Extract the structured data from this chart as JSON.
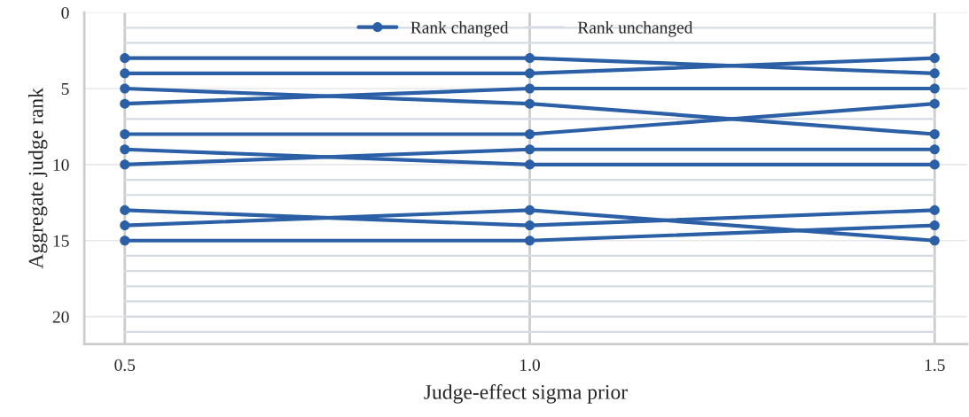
{
  "chart_data": {
    "type": "line",
    "xlabel": "Judge-effect sigma prior",
    "ylabel": "Aggregate judge rank",
    "x": [
      0.5,
      1.0,
      1.5
    ],
    "xlim": [
      0.45,
      1.54
    ],
    "xticks": [
      0.5,
      {
        "value": 1.0,
        "label": "1.0"
      },
      1.5
    ],
    "ylim": [
      21.8,
      0
    ],
    "yticks": [
      0,
      5,
      10,
      15,
      20
    ],
    "grid": true,
    "legend": "top",
    "line_style": "solid",
    "series": [
      {
        "name": "Rank unchanged",
        "color": "#d5dbe3",
        "marker": "none",
        "values": [
          1,
          1,
          1
        ]
      },
      {
        "color": "#d5dbe3",
        "marker": "none",
        "values": [
          2,
          2,
          2
        ]
      },
      {
        "color": "#d5dbe3",
        "marker": "none",
        "values": [
          7,
          7,
          7
        ]
      },
      {
        "color": "#d5dbe3",
        "marker": "none",
        "values": [
          11,
          11,
          11
        ]
      },
      {
        "color": "#d5dbe3",
        "marker": "none",
        "values": [
          12,
          12,
          12
        ]
      },
      {
        "color": "#d5dbe3",
        "marker": "none",
        "values": [
          16,
          16,
          16
        ]
      },
      {
        "color": "#d5dbe3",
        "marker": "none",
        "values": [
          17,
          17,
          17
        ]
      },
      {
        "color": "#d5dbe3",
        "marker": "none",
        "values": [
          18,
          18,
          18
        ]
      },
      {
        "color": "#d5dbe3",
        "marker": "none",
        "values": [
          19,
          19,
          19
        ]
      },
      {
        "color": "#d5dbe3",
        "marker": "none",
        "values": [
          20,
          20,
          20
        ]
      },
      {
        "color": "#d5dbe3",
        "marker": "none",
        "values": [
          21,
          21,
          21
        ]
      },
      {
        "name": "Rank changed",
        "color": "#2b5fa6",
        "marker": "circle",
        "values": [
          3,
          3,
          4
        ]
      },
      {
        "color": "#2b5fa6",
        "marker": "circle",
        "values": [
          4,
          4,
          3
        ]
      },
      {
        "color": "#2b5fa6",
        "marker": "circle",
        "values": [
          5,
          6,
          8
        ]
      },
      {
        "color": "#2b5fa6",
        "marker": "circle",
        "values": [
          6,
          5,
          5
        ]
      },
      {
        "color": "#2b5fa6",
        "marker": "circle",
        "values": [
          8,
          8,
          6
        ]
      },
      {
        "color": "#2b5fa6",
        "marker": "circle",
        "values": [
          9,
          10,
          10
        ]
      },
      {
        "color": "#2b5fa6",
        "marker": "circle",
        "values": [
          10,
          9,
          9
        ]
      },
      {
        "color": "#2b5fa6",
        "marker": "circle",
        "values": [
          13,
          14,
          13
        ]
      },
      {
        "color": "#2b5fa6",
        "marker": "circle",
        "values": [
          14,
          13,
          15
        ]
      },
      {
        "color": "#2b5fa6",
        "marker": "circle",
        "values": [
          15,
          15,
          14
        ]
      }
    ]
  }
}
